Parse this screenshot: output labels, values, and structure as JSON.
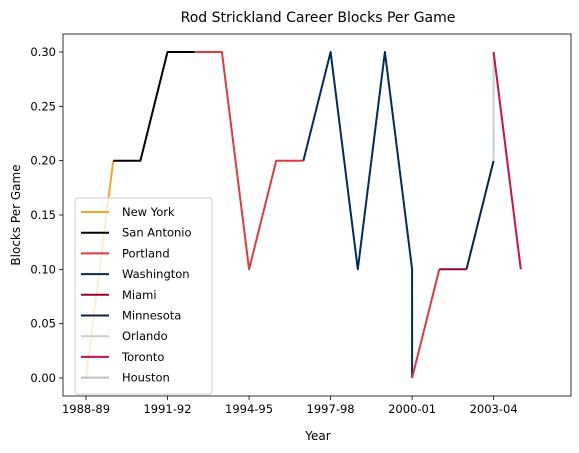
{
  "chart_data": {
    "type": "line",
    "title": "Rod Strickland Career Blocks Per Game",
    "xlabel": "Year",
    "ylabel": "Blocks Per Game",
    "xlim": [
      0,
      17
    ],
    "ylim": [
      0.0,
      0.3
    ],
    "seasons": [
      "1988-89",
      "1989-90",
      "1990-91",
      "1991-92",
      "1992-93",
      "1993-94",
      "1994-95",
      "1995-96",
      "1996-97",
      "1997-98",
      "1998-99",
      "1999-00",
      "2000-01",
      "2001-02",
      "2002-03",
      "2003-04",
      "2004-05"
    ],
    "x_ticks": [
      "1988-89",
      "1991-92",
      "1994-95",
      "1997-98",
      "2000-01",
      "2003-04"
    ],
    "y_ticks": [
      "0.00",
      "0.05",
      "0.10",
      "0.15",
      "0.20",
      "0.25",
      "0.30"
    ],
    "legend_position": "lower-left",
    "grid": false,
    "series": [
      {
        "name": "New York",
        "color": "#f5a623",
        "points": [
          [
            "1988-89",
            0.0
          ],
          [
            "1989-90",
            0.2
          ]
        ]
      },
      {
        "name": "San Antonio",
        "color": "#000000",
        "points": [
          [
            "1989-90",
            0.2
          ],
          [
            "1990-91",
            0.2
          ],
          [
            "1991-92",
            0.3
          ],
          [
            "1992-93",
            0.3
          ]
        ]
      },
      {
        "name": "Portland",
        "color": "#e03a3e",
        "points": [
          [
            "1992-93",
            0.3
          ],
          [
            "1993-94",
            0.3
          ],
          [
            "1994-95",
            0.1
          ],
          [
            "1995-96",
            0.2
          ],
          [
            "1996-97",
            0.2
          ]
        ]
      },
      {
        "name": "Washington",
        "color": "#002b5c",
        "points": [
          [
            "1996-97",
            0.2
          ],
          [
            "1997-98",
            0.3
          ],
          [
            "1998-99",
            0.1
          ],
          [
            "1999-00",
            0.3
          ],
          [
            "2000-01",
            0.1
          ],
          [
            "2000-01",
            0.0
          ]
        ]
      },
      {
        "name": "Portland",
        "color": "#e03a3e",
        "points": [
          [
            "2000-01",
            0.0
          ],
          [
            "2001-02",
            0.1
          ]
        ]
      },
      {
        "name": "Miami",
        "color": "#98002e",
        "points": [
          [
            "2001-02",
            0.1
          ],
          [
            "2002-03",
            0.1
          ]
        ]
      },
      {
        "name": "Minnesota",
        "color": "#0c2340",
        "points": [
          [
            "2002-03",
            0.1
          ],
          [
            "2003-04",
            0.2
          ]
        ]
      },
      {
        "name": "Orlando",
        "color": "#c4ced4",
        "points": [
          [
            "2003-04",
            0.2
          ],
          [
            "2003-04",
            0.3
          ]
        ]
      },
      {
        "name": "Toronto",
        "color": "#ce1141",
        "points": [
          [
            "2003-04",
            0.3
          ],
          [
            "2004-05",
            0.1
          ]
        ]
      }
    ],
    "legend": [
      {
        "name": "New York",
        "color": "#f5a623"
      },
      {
        "name": "San Antonio",
        "color": "#000000"
      },
      {
        "name": "Portland",
        "color": "#e03a3e"
      },
      {
        "name": "Washington",
        "color": "#002b5c"
      },
      {
        "name": "Miami",
        "color": "#98002e"
      },
      {
        "name": "Minnesota",
        "color": "#0c2340"
      },
      {
        "name": "Orlando",
        "color": "#c4ced4"
      },
      {
        "name": "Toronto",
        "color": "#ce1141"
      },
      {
        "name": "Houston",
        "color": "#bfbfbf"
      }
    ]
  }
}
